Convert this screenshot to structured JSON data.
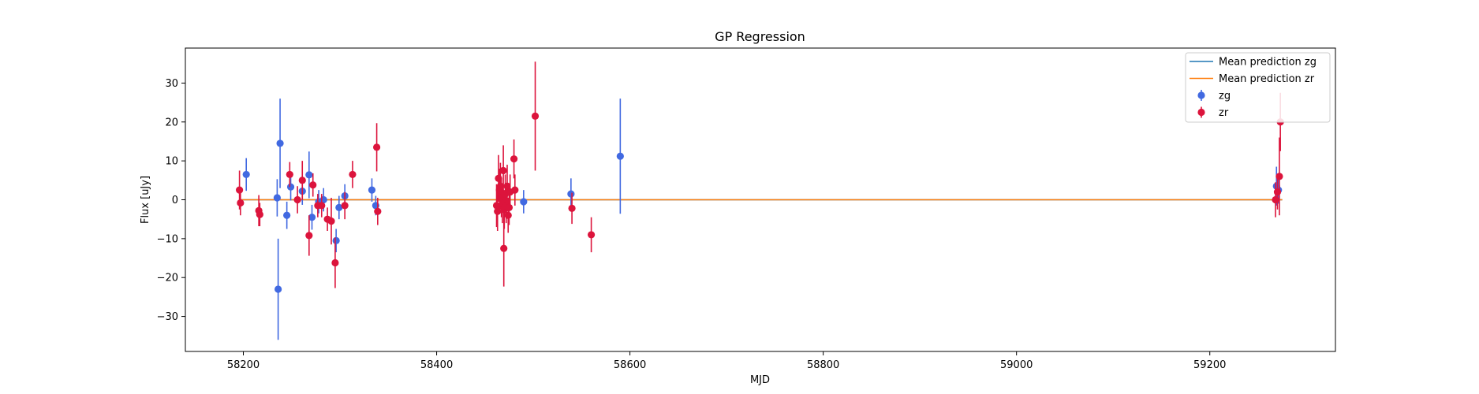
{
  "chart_data": {
    "type": "scatter",
    "title": "GP Regression",
    "xlabel": "MJD",
    "ylabel": "Flux [uJy]",
    "xlim": [
      58140,
      59330
    ],
    "ylim": [
      -39,
      39
    ],
    "xticks": [
      58200,
      58400,
      58600,
      58800,
      59000,
      59200
    ],
    "yticks": [
      -30,
      -20,
      -10,
      0,
      10,
      20,
      30
    ],
    "grid": false,
    "legend_position": "top-right",
    "lines": [
      {
        "name": "Mean prediction zg",
        "color": "#1f77b4",
        "x": [
          58197,
          59275
        ],
        "y": [
          0,
          0
        ]
      },
      {
        "name": "Mean prediction zr",
        "color": "#ff7f0e",
        "x": [
          58197,
          59275
        ],
        "y": [
          0,
          0
        ]
      }
    ],
    "series": [
      {
        "name": "zg",
        "color": "#4169e1",
        "points": [
          {
            "x": 58203,
            "y": 6.5,
            "err": 4.2
          },
          {
            "x": 58235,
            "y": 0.5,
            "err": 4.8
          },
          {
            "x": 58236,
            "y": -23.0,
            "err": 13.0
          },
          {
            "x": 58238,
            "y": 14.5,
            "err": 11.5
          },
          {
            "x": 58245,
            "y": -4.0,
            "err": 3.5
          },
          {
            "x": 58249,
            "y": 3.3,
            "err": 3.5
          },
          {
            "x": 58261,
            "y": 2.2,
            "err": 3.5
          },
          {
            "x": 58268,
            "y": 6.4,
            "err": 6.0
          },
          {
            "x": 58271,
            "y": -4.5,
            "err": 3.2
          },
          {
            "x": 58278,
            "y": -0.5,
            "err": 3.0
          },
          {
            "x": 58283,
            "y": 0.0,
            "err": 3.0
          },
          {
            "x": 58296,
            "y": -10.5,
            "err": 3.0
          },
          {
            "x": 58299,
            "y": -2.0,
            "err": 3.0
          },
          {
            "x": 58305,
            "y": 1.0,
            "err": 3.0
          },
          {
            "x": 58333,
            "y": 2.5,
            "err": 3.0
          },
          {
            "x": 58337,
            "y": -1.5,
            "err": 2.5
          },
          {
            "x": 58490,
            "y": -0.5,
            "err": 3.0
          },
          {
            "x": 58539,
            "y": 1.5,
            "err": 4.0
          },
          {
            "x": 58590,
            "y": 11.2,
            "err": 14.8
          },
          {
            "x": 59269,
            "y": 3.5,
            "err": 5.0
          },
          {
            "x": 59271,
            "y": 2.5,
            "err": 3.5
          }
        ]
      },
      {
        "name": "zr",
        "color": "#dc143c",
        "points": [
          {
            "x": 58196,
            "y": 2.5,
            "err": 5.0
          },
          {
            "x": 58197,
            "y": -0.8,
            "err": 3.2
          },
          {
            "x": 58216,
            "y": -2.8,
            "err": 4.0
          },
          {
            "x": 58217,
            "y": -3.8,
            "err": 3.0
          },
          {
            "x": 58248,
            "y": 6.5,
            "err": 3.2
          },
          {
            "x": 58256,
            "y": 0.0,
            "err": 3.5
          },
          {
            "x": 58261,
            "y": 5.0,
            "err": 5.0
          },
          {
            "x": 58268,
            "y": -9.2,
            "err": 5.2
          },
          {
            "x": 58272,
            "y": 3.8,
            "err": 3.0
          },
          {
            "x": 58277,
            "y": -1.5,
            "err": 3.0
          },
          {
            "x": 58281,
            "y": -1.5,
            "err": 3.0
          },
          {
            "x": 58287,
            "y": -5.0,
            "err": 3.0
          },
          {
            "x": 58291,
            "y": -5.5,
            "err": 6.0
          },
          {
            "x": 58295,
            "y": -16.2,
            "err": 6.5
          },
          {
            "x": 58305,
            "y": -1.5,
            "err": 3.5
          },
          {
            "x": 58313,
            "y": 6.5,
            "err": 3.5
          },
          {
            "x": 58338,
            "y": 13.5,
            "err": 6.2
          },
          {
            "x": 58339,
            "y": -3.0,
            "err": 3.5
          },
          {
            "x": 58462,
            "y": -1.5,
            "err": 5.5
          },
          {
            "x": 58463,
            "y": -3.0,
            "err": 5.0
          },
          {
            "x": 58464,
            "y": 5.5,
            "err": 6.0
          },
          {
            "x": 58465,
            "y": 2.5,
            "err": 5.5
          },
          {
            "x": 58466,
            "y": 3.5,
            "err": 6.0
          },
          {
            "x": 58467,
            "y": 0.5,
            "err": 5.0
          },
          {
            "x": 58468,
            "y": -1.0,
            "err": 5.0
          },
          {
            "x": 58469,
            "y": 7.5,
            "err": 6.5
          },
          {
            "x": 58469.5,
            "y": -12.5,
            "err": 9.8
          },
          {
            "x": 58470,
            "y": -2.5,
            "err": 5.0
          },
          {
            "x": 58471,
            "y": 1.5,
            "err": 5.0
          },
          {
            "x": 58472,
            "y": -1.5,
            "err": 4.5
          },
          {
            "x": 58473,
            "y": 3.5,
            "err": 5.5
          },
          {
            "x": 58474,
            "y": -4.0,
            "err": 4.5
          },
          {
            "x": 58475,
            "y": -2.0,
            "err": 4.5
          },
          {
            "x": 58476,
            "y": 2.0,
            "err": 4.5
          },
          {
            "x": 58480,
            "y": 10.5,
            "err": 5.0
          },
          {
            "x": 58481,
            "y": 2.5,
            "err": 4.0
          },
          {
            "x": 58502,
            "y": 21.5,
            "err": 14.0
          },
          {
            "x": 58540,
            "y": -2.2,
            "err": 4.0
          },
          {
            "x": 58560,
            "y": -9.0,
            "err": 4.5
          },
          {
            "x": 59268,
            "y": 0.0,
            "err": 4.5
          },
          {
            "x": 59270,
            "y": 2.0,
            "err": 4.5
          },
          {
            "x": 59272,
            "y": 6.0,
            "err": 10.0
          },
          {
            "x": 59273,
            "y": 20.0,
            "err": 7.5
          }
        ]
      }
    ]
  }
}
